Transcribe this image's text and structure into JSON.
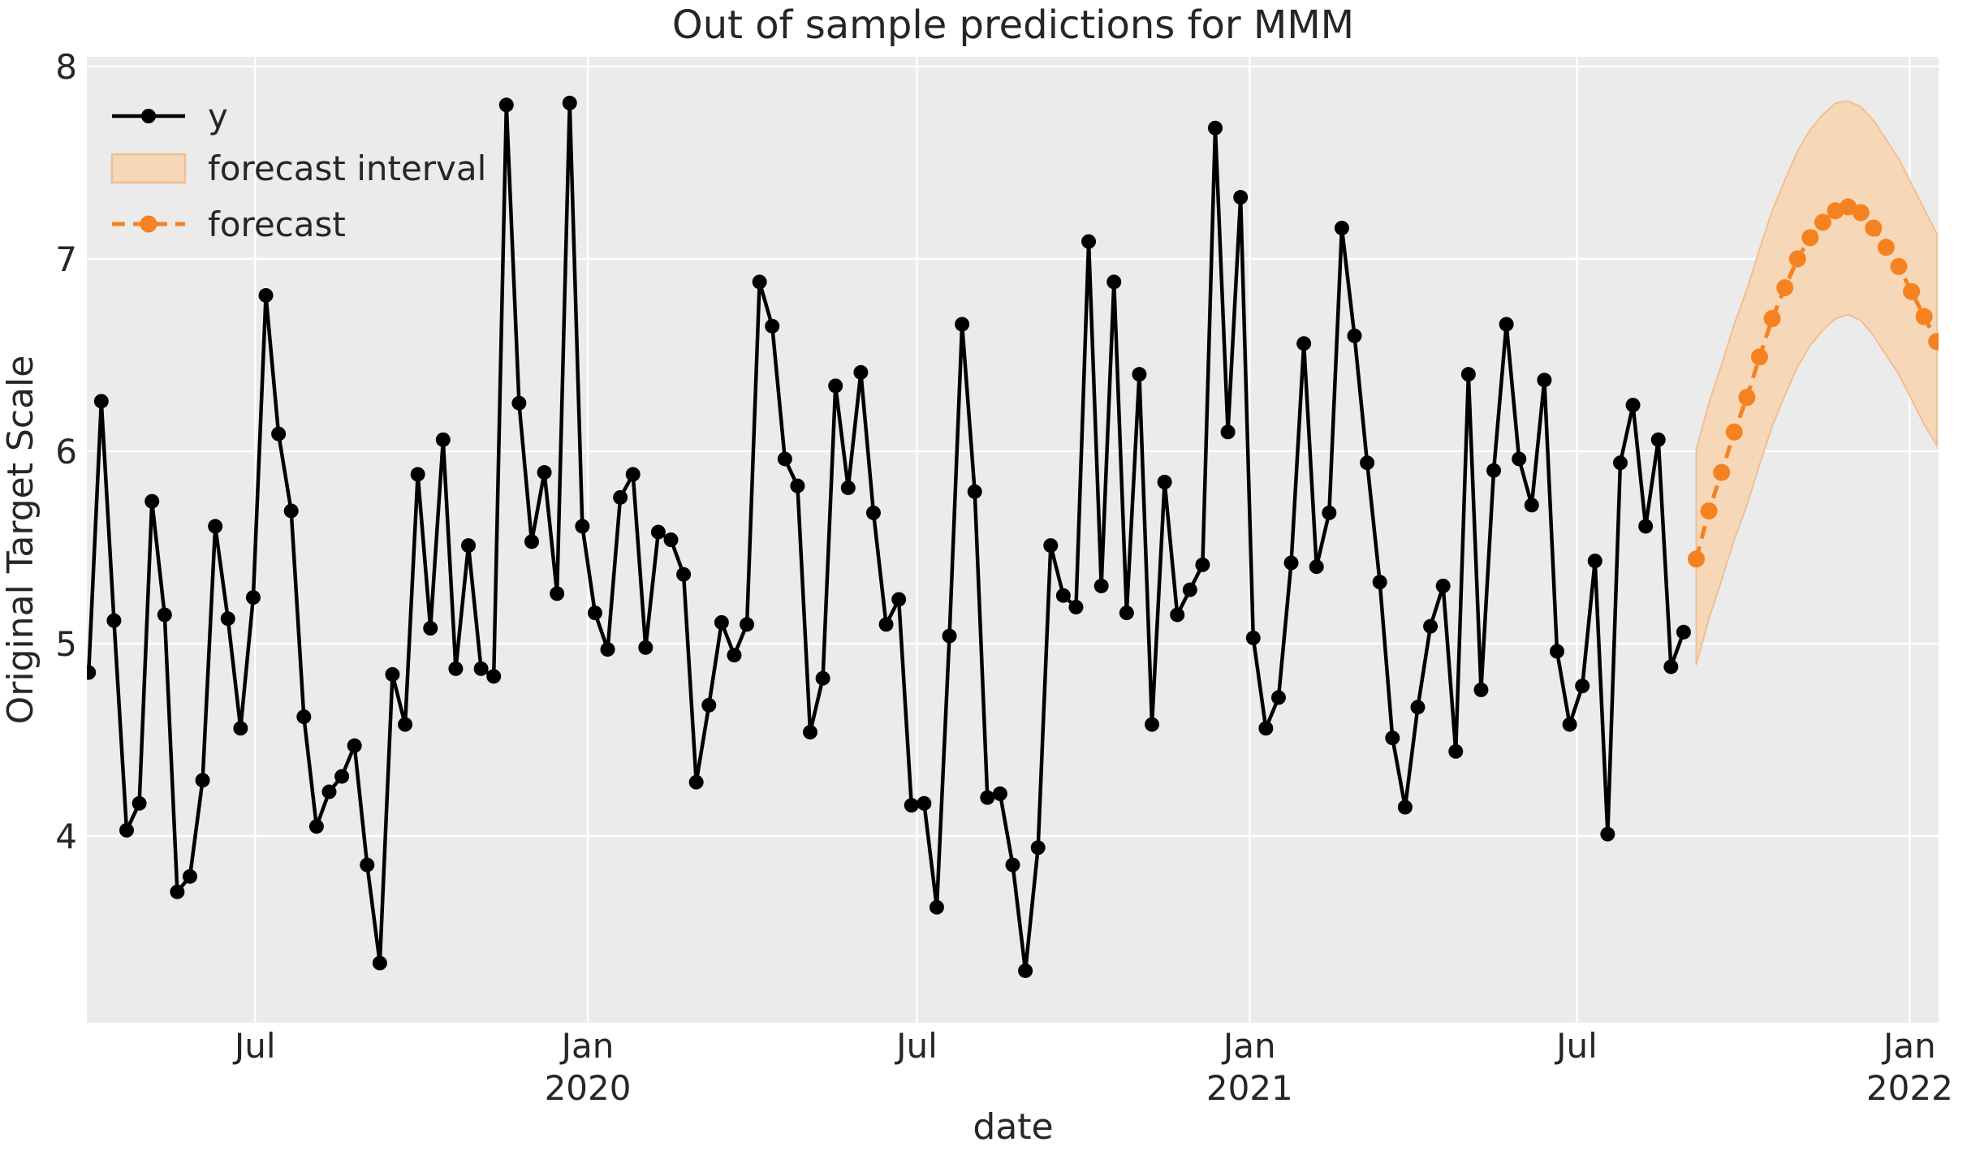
{
  "title": "Out of sample predictions for MMM",
  "axes": {
    "xlabel": "date",
    "ylabel": "Original Target Scale"
  },
  "legend": {
    "items": [
      {
        "label": "y",
        "swatch": "black-line-with-dot-marker"
      },
      {
        "label": "forecast interval",
        "swatch": "shaded-band-patch"
      },
      {
        "label": "forecast",
        "swatch": "orange-dashed-line-with-dot-marker"
      }
    ]
  },
  "colors": {
    "figure_background": "#ffffff",
    "plot_background": "#ebebeb",
    "grid": "#ffffff",
    "series_y": "#000000",
    "forecast": "#f58220",
    "band_fill": "#f6d7b8",
    "band_edge": "#f0bf94",
    "text": "#262626"
  },
  "chart_data": {
    "type": "line",
    "title": "Out of sample predictions for MMM",
    "xlabel": "date",
    "ylabel": "Original Target Scale",
    "grid": true,
    "legend_position": "upper-left",
    "ylim": [
      3.03,
      8.05
    ],
    "xlim": [
      "2019-03-30",
      "2022-01-17"
    ],
    "y_ticks": [
      4,
      5,
      6,
      7,
      8
    ],
    "x_ticks": [
      {
        "date": "2019-07-01",
        "month": "Jul",
        "year": ""
      },
      {
        "date": "2020-01-01",
        "month": "Jan",
        "year": "2020"
      },
      {
        "date": "2020-07-01",
        "month": "Jul",
        "year": ""
      },
      {
        "date": "2021-01-01",
        "month": "Jan",
        "year": "2021"
      },
      {
        "date": "2021-07-01",
        "month": "Jul",
        "year": ""
      },
      {
        "date": "2022-01-01",
        "month": "Jan",
        "year": "2022"
      }
    ],
    "series": [
      {
        "name": "y",
        "style": "solid-line-with-markers",
        "start_date": "2019-03-31",
        "freq_days": 7,
        "values": [
          4.85,
          6.26,
          5.12,
          4.03,
          4.17,
          5.74,
          5.15,
          3.71,
          3.79,
          4.29,
          5.61,
          5.13,
          4.56,
          5.24,
          6.81,
          6.09,
          5.69,
          4.62,
          4.05,
          4.23,
          4.31,
          4.47,
          3.85,
          3.34,
          4.84,
          4.58,
          5.88,
          5.08,
          6.06,
          4.87,
          5.51,
          4.87,
          4.83,
          7.8,
          6.25,
          5.53,
          5.89,
          5.26,
          7.81,
          5.61,
          5.16,
          4.97,
          5.76,
          5.88,
          4.98,
          5.58,
          5.54,
          5.36,
          4.28,
          4.68,
          5.11,
          4.94,
          5.1,
          6.88,
          6.65,
          5.96,
          5.82,
          4.54,
          4.82,
          6.34,
          5.81,
          6.41,
          5.68,
          5.1,
          5.23,
          4.16,
          4.17,
          3.63,
          5.04,
          6.66,
          5.79,
          4.2,
          4.22,
          3.85,
          3.3,
          3.94,
          5.51,
          5.25,
          5.19,
          7.09,
          5.3,
          6.88,
          5.16,
          6.4,
          4.58,
          5.84,
          5.15,
          5.28,
          5.41,
          7.68,
          6.1,
          7.32,
          5.03,
          4.56,
          4.72,
          5.42,
          6.56,
          5.4,
          5.68,
          7.16,
          6.6,
          5.94,
          5.32,
          4.51,
          4.15,
          4.67,
          5.09,
          5.3,
          4.44,
          6.4,
          4.76,
          5.9,
          6.66,
          5.96,
          5.72,
          6.37,
          4.96,
          4.58,
          4.78,
          5.43,
          4.01,
          5.94,
          6.24,
          5.61,
          6.06,
          4.88,
          5.06
        ]
      },
      {
        "name": "forecast",
        "style": "dashed-line-with-markers",
        "start_date": "2021-09-05",
        "freq_days": 7,
        "values": [
          5.44,
          5.69,
          5.89,
          6.1,
          6.28,
          6.49,
          6.69,
          6.85,
          7.0,
          7.11,
          7.19,
          7.25,
          7.27,
          7.24,
          7.16,
          7.06,
          6.96,
          6.83,
          6.7,
          6.57
        ],
        "interval_lower": [
          4.89,
          5.13,
          5.33,
          5.54,
          5.72,
          5.93,
          6.13,
          6.29,
          6.44,
          6.55,
          6.63,
          6.69,
          6.71,
          6.68,
          6.6,
          6.5,
          6.4,
          6.27,
          6.14,
          6.03
        ],
        "interval_upper": [
          6.01,
          6.25,
          6.45,
          6.66,
          6.84,
          7.05,
          7.25,
          7.41,
          7.56,
          7.67,
          7.75,
          7.81,
          7.82,
          7.79,
          7.72,
          7.62,
          7.52,
          7.39,
          7.26,
          7.13
        ]
      }
    ]
  }
}
